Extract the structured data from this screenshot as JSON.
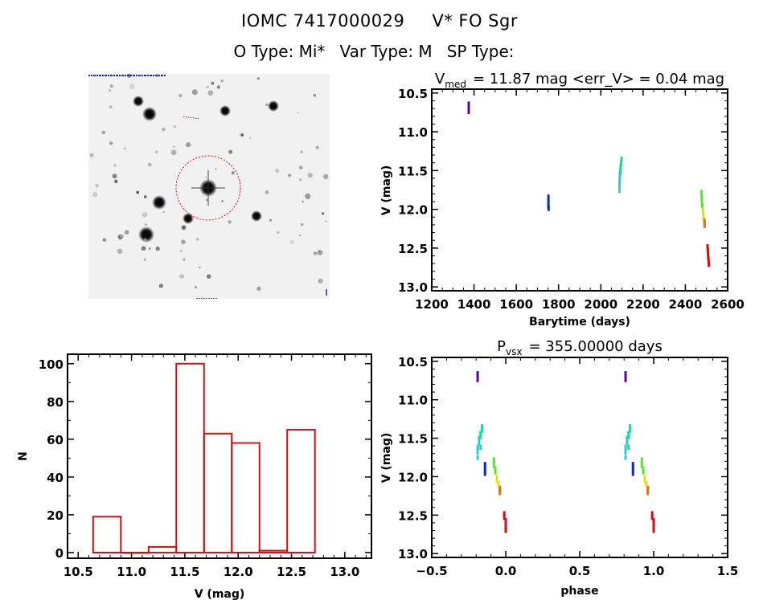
{
  "header": {
    "object_id": "IOMC 7417000029",
    "object_name": "V* FO Sgr",
    "o_type": "O Type: Mi*",
    "var_type": "Var Type: M",
    "sp_type": "SP Type:"
  },
  "star_image": {
    "description": "Finder chart star field with red dashed circle marking the target star",
    "circle_color": "#d01010"
  },
  "chart_data": [
    {
      "id": "light-curve",
      "type": "scatter",
      "title": "V_med = 11.87 mag <err_V> = 0.04 mag",
      "title_parts": {
        "main": "V",
        "sub": "med",
        "rest": "= 11.87 mag <err_V> = 0.04 mag"
      },
      "xlabel": "Barytime (days)",
      "ylabel": "V (mag)",
      "xlim": [
        1200,
        2600
      ],
      "ylim": [
        13.05,
        10.45
      ],
      "y_inverted": true,
      "xticks": [
        1200,
        1400,
        1600,
        1800,
        2000,
        2200,
        2400,
        2600
      ],
      "yticks": [
        10.5,
        11.0,
        11.5,
        12.0,
        12.5,
        13.0
      ],
      "ytick_labels": [
        "10.5",
        "11.0",
        "11.5",
        "12.0",
        "12.5",
        "13.0"
      ],
      "series": [
        {
          "name": "season-1",
          "color": "#5a0a8c",
          "points": [
            [
              1375,
              10.64
            ],
            [
              1375,
              10.68
            ],
            [
              1375,
              10.72
            ],
            [
              1375,
              10.74
            ]
          ]
        },
        {
          "name": "season-2",
          "color": "#1030b0",
          "points": [
            [
              1752,
              11.84
            ],
            [
              1752,
              11.88
            ],
            [
              1752,
              11.92
            ],
            [
              1752,
              11.96
            ],
            [
              1753,
              11.99
            ]
          ]
        },
        {
          "name": "season-3a",
          "color": "#30c8d8",
          "points": [
            [
              2088,
              11.76
            ],
            [
              2088,
              11.7
            ],
            [
              2089,
              11.66
            ],
            [
              2089,
              11.62
            ],
            [
              2090,
              11.58
            ],
            [
              2090,
              11.55
            ]
          ]
        },
        {
          "name": "season-3b",
          "color": "#20d890",
          "points": [
            [
              2092,
              11.52
            ],
            [
              2093,
              11.48
            ],
            [
              2094,
              11.45
            ],
            [
              2095,
              11.42
            ],
            [
              2096,
              11.4
            ],
            [
              2098,
              11.35
            ]
          ]
        },
        {
          "name": "season-4a",
          "color": "#60e030",
          "points": [
            [
              2476,
              11.78
            ],
            [
              2477,
              11.82
            ],
            [
              2478,
              11.86
            ],
            [
              2478,
              11.9
            ],
            [
              2479,
              11.94
            ],
            [
              2480,
              11.96
            ]
          ]
        },
        {
          "name": "season-4b",
          "color": "#e0e020",
          "points": [
            [
              2483,
              12.0
            ],
            [
              2484,
              12.04
            ],
            [
              2485,
              12.08
            ],
            [
              2486,
              12.11
            ]
          ]
        },
        {
          "name": "season-4c",
          "color": "#e07020",
          "points": [
            [
              2490,
              12.15
            ],
            [
              2491,
              12.18
            ],
            [
              2491,
              12.21
            ]
          ]
        },
        {
          "name": "season-5",
          "color": "#d01010",
          "points": [
            [
              2505,
              12.48
            ],
            [
              2506,
              12.52
            ],
            [
              2507,
              12.56
            ],
            [
              2508,
              12.6
            ],
            [
              2509,
              12.64
            ],
            [
              2510,
              12.68
            ],
            [
              2511,
              12.71
            ]
          ]
        }
      ]
    },
    {
      "id": "histogram",
      "type": "bar",
      "title": "",
      "xlabel": "V (mag)",
      "ylabel": "N",
      "xlim": [
        10.4,
        13.25
      ],
      "ylim": [
        -3,
        105
      ],
      "xticks": [
        10.5,
        11.0,
        11.5,
        12.0,
        12.5,
        13.0
      ],
      "xtick_labels": [
        "10.5",
        "11.0",
        "11.5",
        "12.0",
        "12.5",
        "13.0"
      ],
      "yticks": [
        0,
        20,
        40,
        60,
        80,
        100
      ],
      "bar_color": "#d01010",
      "bins": [
        {
          "x0": 10.64,
          "x1": 10.9,
          "count": 19
        },
        {
          "x0": 10.9,
          "x1": 11.16,
          "count": 0
        },
        {
          "x0": 11.16,
          "x1": 11.42,
          "count": 3
        },
        {
          "x0": 11.42,
          "x1": 11.68,
          "count": 100
        },
        {
          "x0": 11.68,
          "x1": 11.94,
          "count": 63
        },
        {
          "x0": 11.94,
          "x1": 12.2,
          "count": 58
        },
        {
          "x0": 12.2,
          "x1": 12.46,
          "count": 1
        },
        {
          "x0": 12.46,
          "x1": 12.72,
          "count": 65
        }
      ]
    },
    {
      "id": "phase-curve",
      "type": "scatter",
      "title": "P_vsx = 355.00000 days",
      "title_parts": {
        "main": "P",
        "sub": "vsx",
        "rest": "= 355.00000 days"
      },
      "period_days": 355.0,
      "xlabel": "phase",
      "ylabel": "V (mag)",
      "xlim": [
        -0.5,
        1.5
      ],
      "ylim": [
        13.05,
        10.45
      ],
      "y_inverted": true,
      "xticks": [
        -0.5,
        0.0,
        0.5,
        1.0,
        1.5
      ],
      "xtick_labels": [
        "−0.5",
        "0.0",
        "0.5",
        "1.0",
        "1.5"
      ],
      "yticks": [
        10.5,
        11.0,
        11.5,
        12.0,
        12.5,
        13.0
      ],
      "ytick_labels": [
        "10.5",
        "11.0",
        "11.5",
        "12.0",
        "12.5",
        "13.0"
      ],
      "series": [
        {
          "name": "season-1",
          "color": "#5a0a8c",
          "points": [
            [
              -0.19,
              10.66
            ],
            [
              -0.19,
              10.7
            ],
            [
              -0.19,
              10.74
            ]
          ]
        },
        {
          "name": "season-2",
          "color": "#1030b0",
          "points": [
            [
              -0.14,
              11.84
            ],
            [
              -0.14,
              11.88
            ],
            [
              -0.14,
              11.92
            ],
            [
              -0.14,
              11.96
            ]
          ]
        },
        {
          "name": "season-3a",
          "color": "#30c8d8",
          "points": [
            [
              -0.19,
              11.75
            ],
            [
              -0.19,
              11.68
            ],
            [
              -0.19,
              11.62
            ],
            [
              -0.18,
              11.56
            ],
            [
              -0.18,
              11.5
            ]
          ]
        },
        {
          "name": "season-3b",
          "color": "#20d890",
          "points": [
            [
              -0.17,
              11.48
            ],
            [
              -0.17,
              11.44
            ],
            [
              -0.16,
              11.4
            ],
            [
              -0.16,
              11.35
            ],
            [
              -0.17,
              11.62
            ]
          ]
        },
        {
          "name": "season-4a",
          "color": "#60e030",
          "points": [
            [
              -0.08,
              11.78
            ],
            [
              -0.08,
              11.82
            ],
            [
              -0.08,
              11.86
            ],
            [
              -0.07,
              11.9
            ],
            [
              -0.07,
              11.94
            ]
          ]
        },
        {
          "name": "season-4b",
          "color": "#e0e020",
          "points": [
            [
              -0.06,
              12.01
            ],
            [
              -0.06,
              12.05
            ],
            [
              -0.05,
              12.09
            ]
          ]
        },
        {
          "name": "season-4c",
          "color": "#e07020",
          "points": [
            [
              -0.04,
              12.15
            ],
            [
              -0.04,
              12.18
            ],
            [
              -0.04,
              12.21
            ]
          ]
        },
        {
          "name": "season-5",
          "color": "#d01010",
          "points": [
            [
              -0.01,
              12.48
            ],
            [
              -0.01,
              12.53
            ],
            [
              0.0,
              12.57
            ],
            [
              0.0,
              12.61
            ],
            [
              0.0,
              12.65
            ],
            [
              0.0,
              12.7
            ]
          ]
        }
      ],
      "repeat_phase_offset": 1.0
    }
  ]
}
